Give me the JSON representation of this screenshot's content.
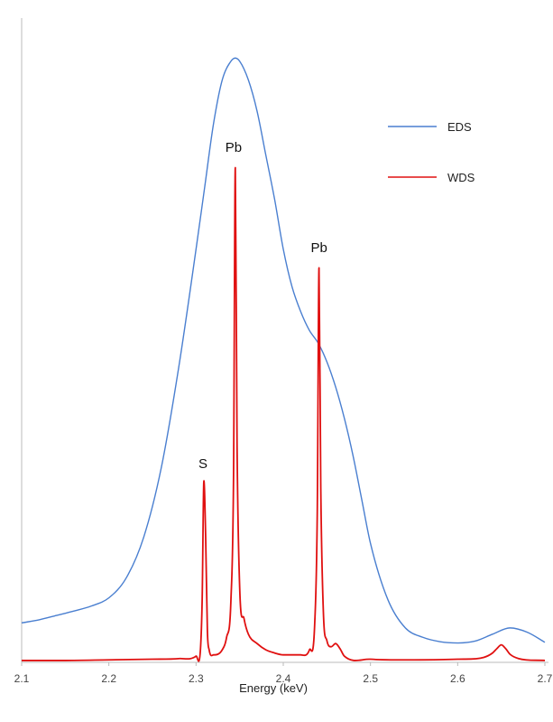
{
  "chart_data": {
    "type": "line",
    "title": "",
    "xlabel": "Energy (keV)",
    "ylabel": "",
    "xlim": [
      2.1,
      2.7
    ],
    "ylim": [
      0,
      1.0
    ],
    "grid": false,
    "legend_position": "top-right",
    "x_ticks": [
      "2.1",
      "2.2",
      "2.3",
      "2.4",
      "2.5",
      "2.6",
      "2.7"
    ],
    "series": [
      {
        "name": "EDS",
        "color": "#4a7fd0",
        "x": [
          2.1,
          2.12,
          2.14,
          2.16,
          2.18,
          2.2,
          2.22,
          2.24,
          2.26,
          2.28,
          2.3,
          2.31,
          2.32,
          2.33,
          2.34,
          2.345,
          2.35,
          2.36,
          2.37,
          2.38,
          2.39,
          2.4,
          2.41,
          2.42,
          2.43,
          2.44,
          2.45,
          2.46,
          2.47,
          2.48,
          2.49,
          2.5,
          2.52,
          2.54,
          2.56,
          2.58,
          2.6,
          2.62,
          2.64,
          2.66,
          2.68,
          2.7
        ],
        "y": [
          0.063,
          0.068,
          0.075,
          0.082,
          0.09,
          0.103,
          0.135,
          0.2,
          0.31,
          0.47,
          0.66,
          0.76,
          0.86,
          0.93,
          0.96,
          0.965,
          0.96,
          0.93,
          0.88,
          0.81,
          0.74,
          0.66,
          0.6,
          0.56,
          0.53,
          0.51,
          0.48,
          0.44,
          0.39,
          0.33,
          0.26,
          0.19,
          0.1,
          0.055,
          0.04,
          0.033,
          0.031,
          0.034,
          0.045,
          0.055,
          0.048,
          0.032
        ]
      },
      {
        "name": "WDS",
        "color": "#e01010",
        "x": [
          2.1,
          2.15,
          2.2,
          2.25,
          2.28,
          2.3,
          2.305,
          2.307,
          2.309,
          2.311,
          2.313,
          2.315,
          2.32,
          2.33,
          2.335,
          2.34,
          2.343,
          2.345,
          2.347,
          2.35,
          2.355,
          2.36,
          2.37,
          2.38,
          2.39,
          2.4,
          2.42,
          2.43,
          2.436,
          2.439,
          2.441,
          2.443,
          2.446,
          2.45,
          2.455,
          2.46,
          2.465,
          2.47,
          2.5,
          2.55,
          2.6,
          2.63,
          2.64,
          2.645,
          2.65,
          2.655,
          2.66,
          2.67,
          2.7
        ],
        "y": [
          0.003,
          0.003,
          0.004,
          0.005,
          0.006,
          0.01,
          0.02,
          0.1,
          0.29,
          0.2,
          0.05,
          0.02,
          0.012,
          0.02,
          0.04,
          0.1,
          0.3,
          0.79,
          0.35,
          0.12,
          0.07,
          0.045,
          0.03,
          0.02,
          0.015,
          0.012,
          0.012,
          0.02,
          0.06,
          0.24,
          0.63,
          0.28,
          0.08,
          0.035,
          0.025,
          0.03,
          0.022,
          0.01,
          0.005,
          0.004,
          0.005,
          0.008,
          0.015,
          0.022,
          0.028,
          0.022,
          0.013,
          0.006,
          0.003
        ]
      }
    ],
    "annotations": [
      {
        "text": "S",
        "x": 2.308,
        "y": 0.31
      },
      {
        "text": "Pb",
        "x": 2.343,
        "y": 0.815
      },
      {
        "text": "Pb",
        "x": 2.441,
        "y": 0.655
      }
    ]
  }
}
